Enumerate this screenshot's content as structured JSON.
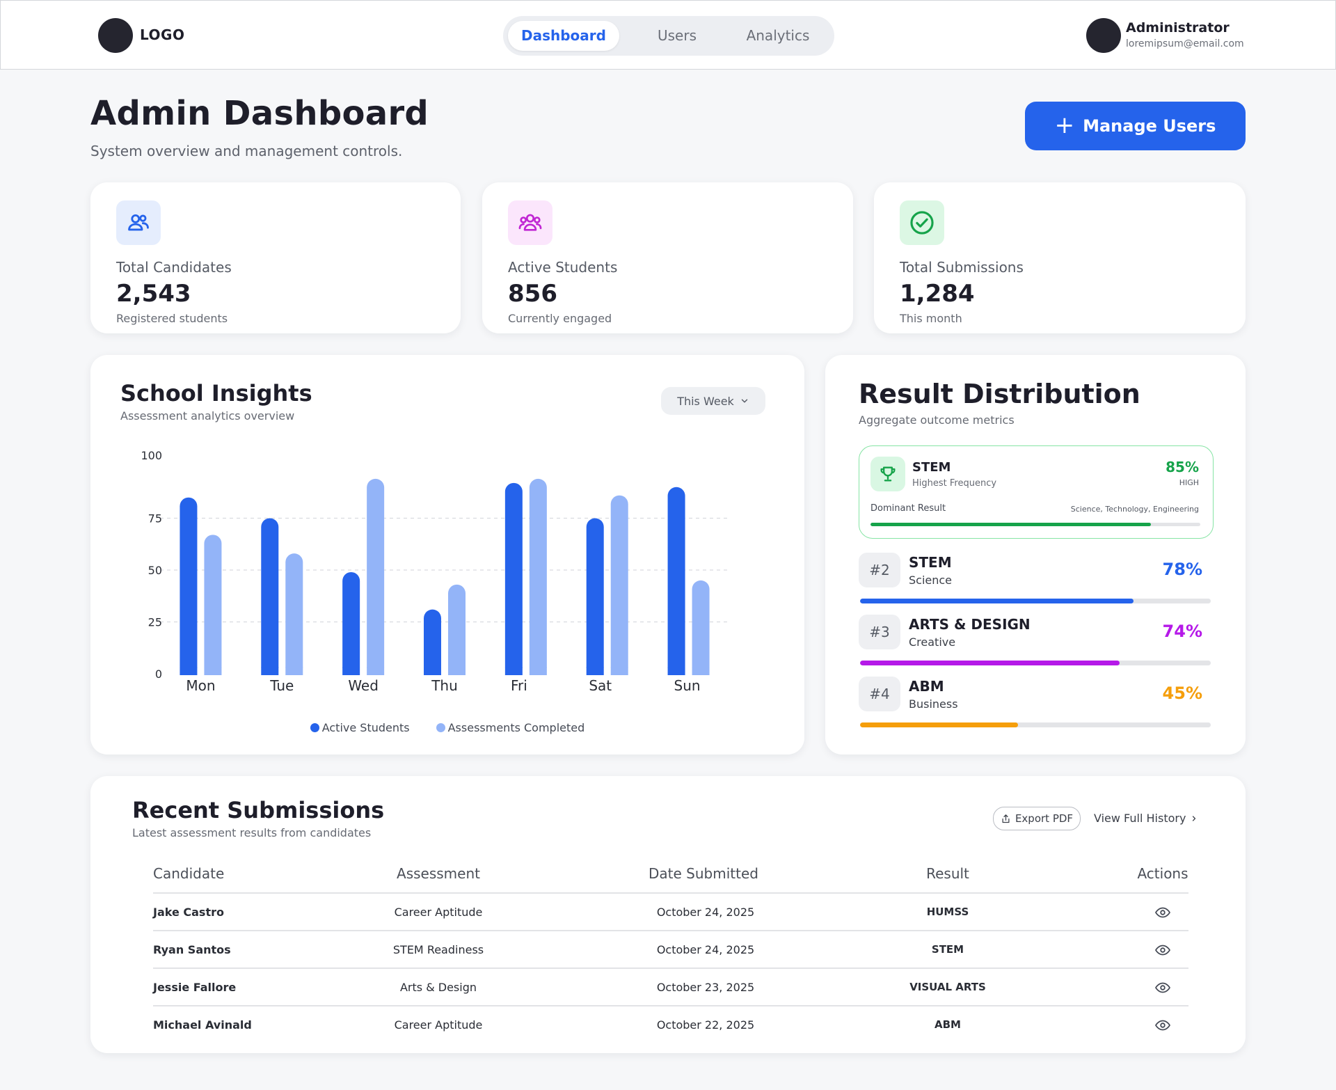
{
  "header": {
    "logo": "LOGO",
    "tabs": [
      "Dashboard",
      "Users",
      "Analytics"
    ],
    "user_name": "Administrator",
    "user_email": "loremipsum@email.com"
  },
  "page": {
    "title": "Admin Dashboard",
    "subtitle": "System overview and management controls.",
    "manage_button": "Manage Users"
  },
  "stats": [
    {
      "label": "Total Candidates",
      "value": "2,543",
      "note": "Registered students",
      "icon": "users-icon",
      "color": "#2563eb"
    },
    {
      "label": "Active Students",
      "value": "856",
      "note": "Currently engaged",
      "icon": "group-icon",
      "color": "#c026d3"
    },
    {
      "label": "Total Submissions",
      "value": "1,284",
      "note": "This month",
      "icon": "check-circle-icon",
      "color": "#16a34a"
    }
  ],
  "insights": {
    "title": "School Insights",
    "subtitle": "Assessment analytics overview",
    "period": "This Week"
  },
  "chart_data": {
    "type": "bar",
    "categories": [
      "Mon",
      "Tue",
      "Wed",
      "Thu",
      "Fri",
      "Sat",
      "Sun"
    ],
    "series": [
      {
        "name": "Active Students",
        "values": [
          85,
          75,
          49,
          31,
          92,
          75,
          90
        ],
        "color": "#2563eb"
      },
      {
        "name": "Assessments Completed",
        "values": [
          67,
          58,
          94,
          43,
          94,
          86,
          45
        ],
        "color": "#93b4f8"
      }
    ],
    "yticks": [
      0,
      25,
      50,
      75,
      100
    ],
    "ylim": [
      0,
      100
    ],
    "grid": true,
    "legend": "bottom-center"
  },
  "distribution": {
    "title": "Result Distribution",
    "subtitle": "Aggregate outcome metrics",
    "top": {
      "name": "STEM",
      "note": "Highest Frequency",
      "pct": "85%",
      "level": "HIGH",
      "label": "Dominant Result",
      "detail": "Science, Technology, Engineering",
      "fraction": 0.85,
      "color": "#16a34a"
    },
    "ranks": [
      {
        "rank": "#2",
        "name": "STEM",
        "category": "Science",
        "pct": "78%",
        "fraction": 0.78,
        "color": "#2563eb"
      },
      {
        "rank": "#3",
        "name": "ARTS & DESIGN",
        "category": "Creative",
        "pct": "74%",
        "fraction": 0.74,
        "color": "#b519e8"
      },
      {
        "rank": "#4",
        "name": "ABM",
        "category": "Business",
        "pct": "45%",
        "fraction": 0.45,
        "color": "#f59e0b"
      }
    ]
  },
  "submissions": {
    "title": "Recent Submissions",
    "subtitle": "Latest assessment results from candidates",
    "export_label": "Export PDF",
    "history_label": "View Full History",
    "columns": [
      "Candidate",
      "Assessment",
      "Date Submitted",
      "Result",
      "Actions"
    ],
    "rows": [
      {
        "candidate": "Jake Castro",
        "assessment": "Career Aptitude",
        "date": "October 24, 2025",
        "result": "HUMSS"
      },
      {
        "candidate": "Ryan Santos",
        "assessment": "STEM Readiness",
        "date": "October 24, 2025",
        "result": "STEM"
      },
      {
        "candidate": "Jessie Fallore",
        "assessment": "Arts & Design",
        "date": "October 23, 2025",
        "result": "VISUAL ARTS"
      },
      {
        "candidate": "Michael Avinald",
        "assessment": "Career Aptitude",
        "date": "October 22, 2025",
        "result": "ABM"
      }
    ]
  }
}
